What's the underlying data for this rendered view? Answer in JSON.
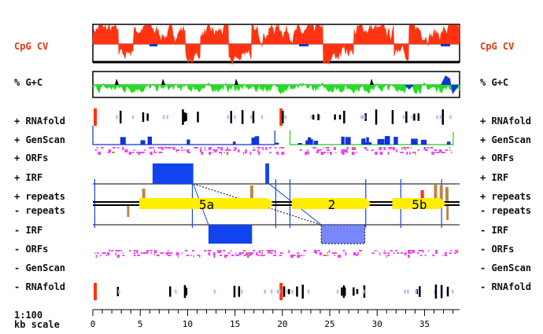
{
  "labels": {
    "cpg": "CpG CV",
    "gc": "% G+C",
    "rnafold_plus": "+ RNAfold",
    "genscan_plus": "+ GenScan",
    "orfs_plus": "+ ORFs",
    "irf_plus": "+ IRF",
    "repeats_plus": "+ repeats",
    "repeats_minus": "- repeats",
    "irf_minus": "- IRF",
    "orfs_minus": "- ORFs",
    "genscan_minus": "- GenScan",
    "rnafold_minus": "- RNAfold",
    "scale_ratio": "1:100",
    "scale_unit": "kb scale"
  },
  "colors": {
    "cpg": "#ff3311",
    "gc_low": "#22dd22",
    "gc_high": "#000000",
    "gc_blue": "#1133dd",
    "irf": "#1144ee",
    "irf_light": "#7788ff",
    "exon": "#ffee00",
    "orf": "#ee44ee",
    "repeat": "#bb8844",
    "rna_black": "#000000",
    "rna_light": "#bbbbff",
    "rna_red": "#ff3300",
    "genscan": "#1133dd",
    "genscan_green": "#22cc22"
  },
  "axis": {
    "min_kb": 0,
    "max_kb": 38.7,
    "ticks": [
      0,
      5,
      10,
      15,
      20,
      25,
      30,
      35
    ]
  },
  "exons": [
    {
      "label": "5a",
      "start_kb": 4.9,
      "end_kb": 19.1,
      "strand": "+"
    },
    {
      "label": "2",
      "start_kb": 21.0,
      "end_kb": 29.4,
      "strand": "+"
    },
    {
      "label": "5b",
      "start_kb": 31.6,
      "end_kb": 37.3,
      "strand": "+"
    }
  ],
  "irf": {
    "plus": [
      {
        "start_kb": 6.3,
        "end_kb": 10.6
      },
      {
        "start_kb": 18.2,
        "end_kb": 18.6
      }
    ],
    "minus": [
      {
        "start_kb": 12.2,
        "end_kb": 16.8,
        "style": "solid"
      },
      {
        "start_kb": 24.1,
        "end_kb": 28.7,
        "style": "dotted"
      }
    ]
  }
}
